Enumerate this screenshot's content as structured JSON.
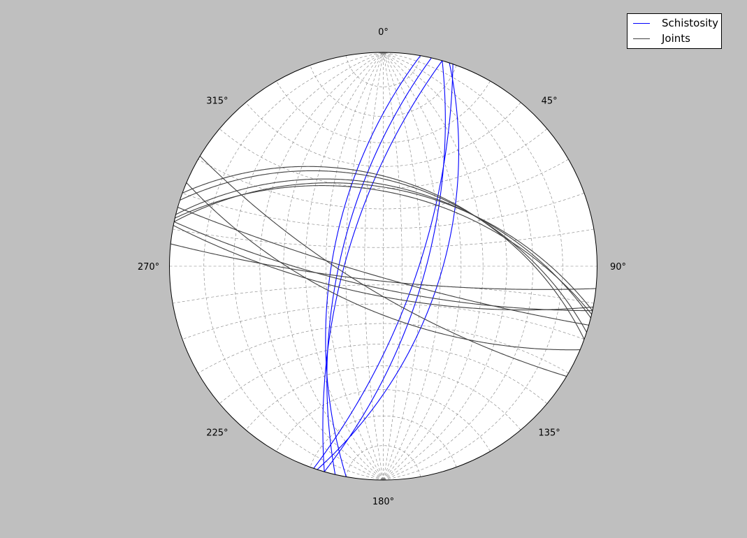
{
  "chart_data": {
    "type": "stereonet",
    "projection": "equal-angle",
    "hemisphere": "lower",
    "azimuth_tick_labels": [
      "0°",
      "45°",
      "90°",
      "135°",
      "180°",
      "225°",
      "270°",
      "315°"
    ],
    "azimuth_ticks": [
      0,
      45,
      90,
      135,
      180,
      225,
      270,
      315
    ],
    "grid": true,
    "grid_spacing_deg": 10,
    "legend_position": "top-right",
    "series": [
      {
        "name": "Schistosity",
        "color": "#0000ff",
        "element": "great-circle",
        "planes": [
          {
            "strike": 18,
            "dip": 60
          },
          {
            "strike": 16,
            "dip": 68
          },
          {
            "strike": 19,
            "dip": 72
          },
          {
            "strike": 190,
            "dip": 63
          },
          {
            "strike": 193,
            "dip": 67
          },
          {
            "strike": 196,
            "dip": 70
          }
        ]
      },
      {
        "name": "Joints",
        "color": "#404040",
        "element": "great-circle",
        "planes": [
          {
            "strike": 283,
            "dip": 52
          },
          {
            "strike": 288,
            "dip": 47
          },
          {
            "strike": 282,
            "dip": 50
          },
          {
            "strike": 290,
            "dip": 46
          },
          {
            "strike": 284,
            "dip": 49
          },
          {
            "strike": 102,
            "dip": 78
          },
          {
            "strike": 106,
            "dip": 84
          },
          {
            "strike": 96,
            "dip": 82
          },
          {
            "strike": 121,
            "dip": 76
          },
          {
            "strike": 113,
            "dip": 66
          },
          {
            "strike": 101,
            "dip": 74
          }
        ]
      }
    ]
  }
}
